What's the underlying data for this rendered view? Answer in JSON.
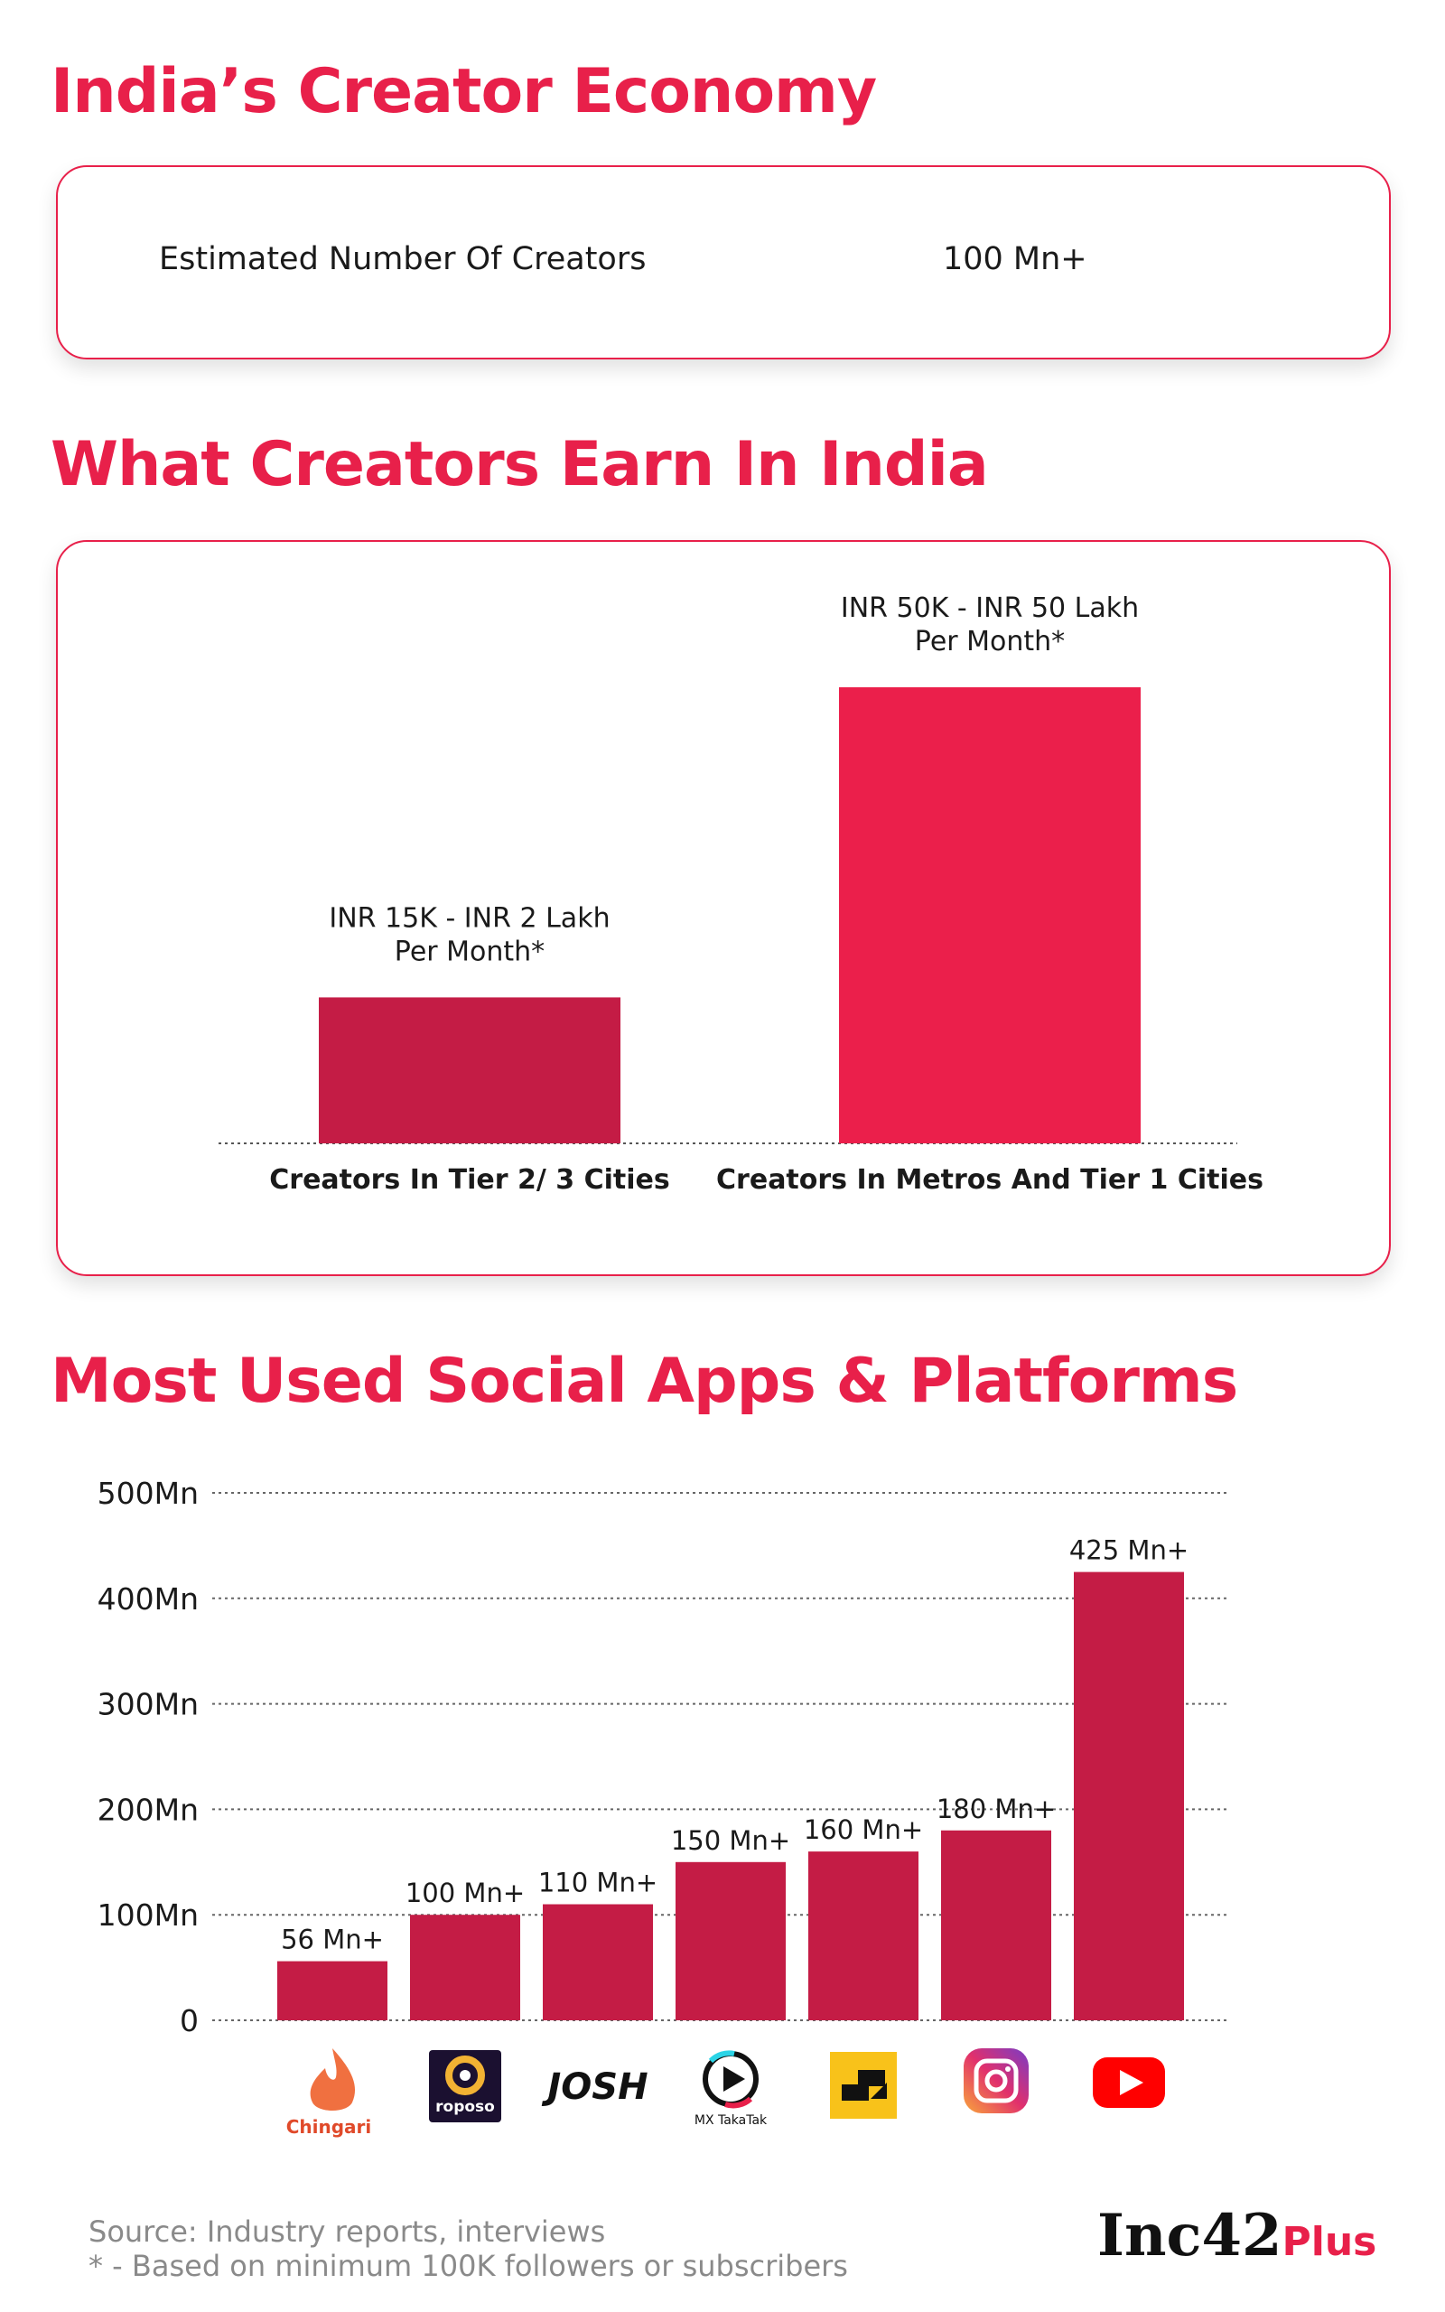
{
  "sections": {
    "economy_title": "India’s Creator Economy",
    "earn_title": "What Creators Earn In India",
    "apps_title": "Most Used Social Apps & Platforms"
  },
  "economy": {
    "label": "Estimated Number Of Creators",
    "value": "100 Mn+"
  },
  "chart_data": [
    {
      "type": "bar",
      "categories": [
        "Creators In Tier 2/ 3 Cities",
        "Creators In Metros And Tier 1 Cities"
      ],
      "data_labels": [
        [
          "INR 15K - INR 2 Lakh",
          "Per Month*"
        ],
        [
          "INR 50K - INR 50 Lakh",
          "Per Month*"
        ]
      ],
      "relative_values": [
        0.32,
        1.0
      ],
      "colors": [
        "#c41c45",
        "#eb1f4b"
      ]
    },
    {
      "type": "bar",
      "categories": [
        "Chingari",
        "roposo",
        "Josh",
        "MX TakaTak",
        "Moj",
        "Instagram",
        "YouTube"
      ],
      "values": [
        56,
        100,
        110,
        150,
        160,
        180,
        425
      ],
      "data_labels": [
        "56 Mn+",
        "100 Mn+",
        "110 Mn+",
        "150 Mn+",
        "160 Mn+",
        "180 Mn+",
        "425 Mn+"
      ],
      "ylim": [
        0,
        500
      ],
      "yticks": [
        0,
        100,
        200,
        300,
        400,
        500
      ],
      "ytick_labels": [
        "0",
        "100Mn",
        "200Mn",
        "300Mn",
        "400Mn",
        "500Mn"
      ],
      "grid": true,
      "bar_color": "#c41c45",
      "icons": [
        "chingari-logo-icon",
        "roposo-logo-icon",
        "josh-logo-icon",
        "mx-takatak-logo-icon",
        "moj-logo-icon",
        "instagram-logo-icon",
        "youtube-logo-icon"
      ]
    }
  ],
  "footer": {
    "source": "Source: Industry reports, interviews",
    "note": "* - Based on minimum 100K followers or subscribers",
    "brand": "Inc42",
    "brand_plus": "Plus"
  },
  "colors": {
    "accent": "#e8204a",
    "bar_dark": "#c41c45",
    "text_gray": "#8a8a8a"
  }
}
